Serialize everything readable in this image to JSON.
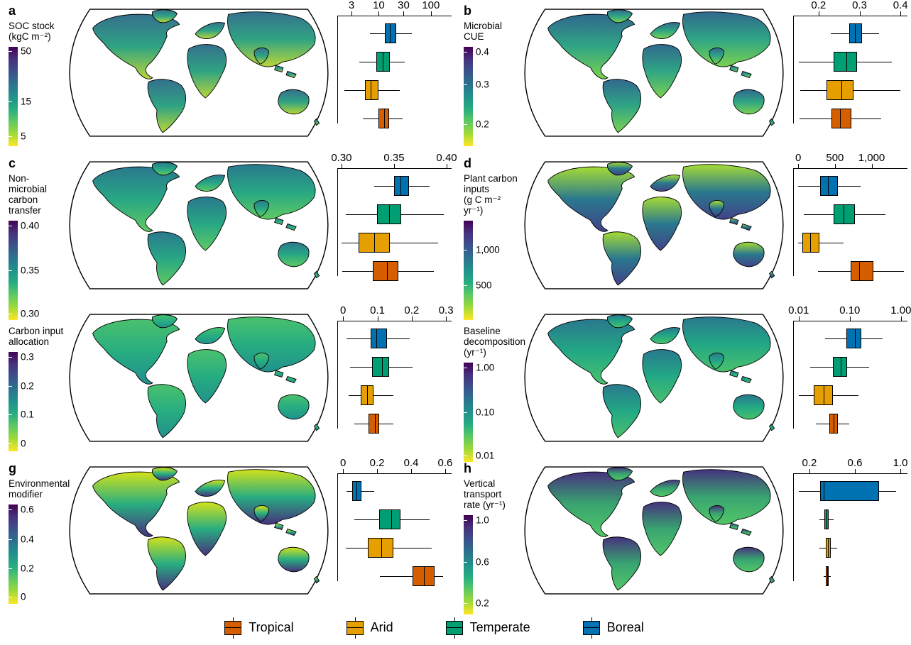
{
  "figure": {
    "description": "Global maps with biome boxplots, panels a-h"
  },
  "legend": {
    "items": [
      {
        "label": "Tropical",
        "color": "#D55E00"
      },
      {
        "label": "Arid",
        "color": "#E69F00"
      },
      {
        "label": "Temperate",
        "color": "#009E73"
      },
      {
        "label": "Boreal",
        "color": "#0072B2"
      }
    ]
  },
  "chart_data": [
    {
      "panel": "a",
      "type": "map+boxplot",
      "title": "SOC stock\n(kgC m⁻²)",
      "map_colors": [
        "#35708e",
        "#2fa383",
        "#b8d539"
      ],
      "colorbar": {
        "ticks": [
          {
            "label": "50",
            "pos": 0.04
          },
          {
            "label": "15",
            "pos": 0.55
          },
          {
            "label": "5",
            "pos": 0.9
          }
        ]
      },
      "box_axis": {
        "scale": "log",
        "min": 1.6,
        "max": 220,
        "ticks": [
          {
            "label": "3",
            "value": 3
          },
          {
            "label": "10",
            "value": 10
          },
          {
            "label": "30",
            "value": 30
          },
          {
            "label": "100",
            "value": 100
          }
        ]
      },
      "boxes": [
        {
          "biome": "Boreal",
          "whislo": 6.7,
          "q1": 13.0,
          "med": 16.4,
          "q3": 21.4,
          "whishi": 42.8
        },
        {
          "biome": "Temperate",
          "whislo": 4.2,
          "q1": 9.0,
          "med": 12.0,
          "q3": 16.5,
          "whishi": 31.0
        },
        {
          "biome": "Arid",
          "whislo": 2.2,
          "q1": 5.5,
          "med": 7.0,
          "q3": 10.0,
          "whishi": 25.0
        },
        {
          "biome": "Tropical",
          "whislo": 4.9,
          "q1": 10.0,
          "med": 12.5,
          "q3": 16.0,
          "whishi": 29.0
        }
      ]
    },
    {
      "panel": "b",
      "type": "map+boxplot",
      "title": "Microbial\nCUE",
      "map_colors": [
        "#31688e",
        "#2fa584",
        "#7ad151"
      ],
      "colorbar": {
        "ticks": [
          {
            "label": "0.4",
            "pos": 0.05
          },
          {
            "label": "0.3",
            "pos": 0.38
          },
          {
            "label": "0.2",
            "pos": 0.78
          }
        ]
      },
      "box_axis": {
        "scale": "linear",
        "min": 0.138,
        "max": 0.41,
        "ticks": [
          {
            "label": "0.2",
            "value": 0.2
          },
          {
            "label": "0.3",
            "value": 0.3
          },
          {
            "label": "0.4",
            "value": 0.4
          }
        ]
      },
      "boxes": [
        {
          "biome": "Boreal",
          "whislo": 0.23,
          "q1": 0.275,
          "med": 0.288,
          "q3": 0.306,
          "whishi": 0.347
        },
        {
          "biome": "Temperate",
          "whislo": 0.152,
          "q1": 0.236,
          "med": 0.268,
          "q3": 0.294,
          "whishi": 0.379
        },
        {
          "biome": "Arid",
          "whislo": 0.156,
          "q1": 0.219,
          "med": 0.255,
          "q3": 0.285,
          "whishi": 0.399
        },
        {
          "biome": "Tropical",
          "whislo": 0.153,
          "q1": 0.231,
          "med": 0.253,
          "q3": 0.28,
          "whishi": 0.352
        }
      ]
    },
    {
      "panel": "c",
      "type": "map+boxplot",
      "title": "Non-microbial\ncarbon\ntransfer",
      "map_colors": [
        "#2a788e",
        "#28a784",
        "#5ec962"
      ],
      "colorbar": {
        "ticks": [
          {
            "label": "0.40",
            "pos": 0.05
          },
          {
            "label": "0.35",
            "pos": 0.5
          },
          {
            "label": "0.30",
            "pos": 0.93
          }
        ]
      },
      "box_axis": {
        "scale": "linear",
        "min": 0.296,
        "max": 0.402,
        "ticks": [
          {
            "label": "0.30",
            "value": 0.3
          },
          {
            "label": "0.35",
            "value": 0.35
          },
          {
            "label": "0.40",
            "value": 0.4
          }
        ]
      },
      "boxes": [
        {
          "biome": "Boreal",
          "whislo": 0.331,
          "q1": 0.35,
          "med": 0.356,
          "q3": 0.364,
          "whishi": 0.384
        },
        {
          "biome": "Temperate",
          "whislo": 0.304,
          "q1": 0.334,
          "med": 0.345,
          "q3": 0.357,
          "whishi": 0.397
        },
        {
          "biome": "Arid",
          "whislo": 0.3,
          "q1": 0.316,
          "med": 0.331,
          "q3": 0.346,
          "whishi": 0.392
        },
        {
          "biome": "Tropical",
          "whislo": 0.301,
          "q1": 0.33,
          "med": 0.343,
          "q3": 0.354,
          "whishi": 0.388
        }
      ]
    },
    {
      "panel": "d",
      "type": "map+boxplot",
      "title": "Plant carbon\ninputs\n(g C m⁻²\nyr⁻¹)",
      "map_colors": [
        "#a5db36",
        "#2a788e",
        "#414487"
      ],
      "colorbar": {
        "ticks": [
          {
            "label": "1,000",
            "pos": 0.29
          },
          {
            "label": "500",
            "pos": 0.65
          }
        ]
      },
      "box_axis": {
        "scale": "linear",
        "min": -70,
        "max": 1450,
        "ticks": [
          {
            "label": "0",
            "value": 0
          },
          {
            "label": "500",
            "value": 500
          },
          {
            "label": "1,000",
            "value": 1000
          }
        ]
      },
      "boxes": [
        {
          "biome": "Boreal",
          "whislo": 0,
          "q1": 296,
          "med": 405,
          "q3": 536,
          "whishi": 849
        },
        {
          "biome": "Temperate",
          "whislo": 76,
          "q1": 480,
          "med": 618,
          "q3": 776,
          "whishi": 1186
        },
        {
          "biome": "Arid",
          "whislo": 0,
          "q1": 59,
          "med": 158,
          "q3": 290,
          "whishi": 618
        },
        {
          "biome": "Tropical",
          "whislo": 273,
          "q1": 710,
          "med": 832,
          "q3": 1020,
          "whishi": 1440
        }
      ]
    },
    {
      "panel": "e",
      "type": "map+boxplot",
      "title": "Carbon input\nallocation",
      "map_colors": [
        "#4ac16d",
        "#27ad81",
        "#21918c"
      ],
      "colorbar": {
        "ticks": [
          {
            "label": "0.3",
            "pos": 0.05
          },
          {
            "label": "0.2",
            "pos": 0.34
          },
          {
            "label": "0.1",
            "pos": 0.63
          },
          {
            "label": "0",
            "pos": 0.92
          }
        ]
      },
      "box_axis": {
        "scale": "linear",
        "min": -0.017,
        "max": 0.308,
        "ticks": [
          {
            "label": "0",
            "value": 0
          },
          {
            "label": "0.1",
            "value": 0.1
          },
          {
            "label": "0.2",
            "value": 0.2
          },
          {
            "label": "0.3",
            "value": 0.3
          }
        ]
      },
      "boxes": [
        {
          "biome": "Boreal",
          "whislo": 0.01,
          "q1": 0.081,
          "med": 0.096,
          "q3": 0.127,
          "whishi": 0.194
        },
        {
          "biome": "Temperate",
          "whislo": 0.021,
          "q1": 0.085,
          "med": 0.113,
          "q3": 0.134,
          "whishi": 0.203
        },
        {
          "biome": "Arid",
          "whislo": 0.016,
          "q1": 0.051,
          "med": 0.069,
          "q3": 0.089,
          "whishi": 0.146
        },
        {
          "biome": "Tropical",
          "whislo": 0.033,
          "q1": 0.075,
          "med": 0.092,
          "q3": 0.106,
          "whishi": 0.147
        }
      ]
    },
    {
      "panel": "f",
      "type": "map+boxplot",
      "title": "Baseline\ndecomposition\n(yr⁻¹)",
      "map_colors": [
        "#2a788e",
        "#22a884",
        "#4ac16d"
      ],
      "colorbar": {
        "ticks": [
          {
            "label": "1.00",
            "pos": 0.05
          },
          {
            "label": "0.10",
            "pos": 0.5
          },
          {
            "label": "0.01",
            "pos": 0.93
          }
        ]
      },
      "box_axis": {
        "scale": "log",
        "min": 0.0078,
        "max": 1.18,
        "ticks": [
          {
            "label": "0.01",
            "value": 0.01
          },
          {
            "label": "0.10",
            "value": 0.1
          },
          {
            "label": "1.00",
            "value": 1.0
          }
        ]
      },
      "boxes": [
        {
          "biome": "Boreal",
          "whislo": 0.033,
          "q1": 0.085,
          "med": 0.124,
          "q3": 0.17,
          "whishi": 0.44
        },
        {
          "biome": "Temperate",
          "whislo": 0.017,
          "q1": 0.047,
          "med": 0.066,
          "q3": 0.088,
          "whishi": 0.24
        },
        {
          "biome": "Arid",
          "whislo": 0.01,
          "q1": 0.02,
          "med": 0.031,
          "q3": 0.047,
          "whishi": 0.149
        },
        {
          "biome": "Tropical",
          "whislo": 0.022,
          "q1": 0.04,
          "med": 0.048,
          "q3": 0.059,
          "whishi": 0.099
        }
      ]
    },
    {
      "panel": "g",
      "type": "map+boxplot",
      "title": "Environmental\nmodifier",
      "map_colors": [
        "#d2e21b",
        "#28ae80",
        "#46327e"
      ],
      "colorbar": {
        "ticks": [
          {
            "label": "0.6",
            "pos": 0.05
          },
          {
            "label": "0.4",
            "pos": 0.35
          },
          {
            "label": "0.2",
            "pos": 0.64
          },
          {
            "label": "0",
            "pos": 0.93
          }
        ]
      },
      "box_axis": {
        "scale": "linear",
        "min": -0.034,
        "max": 0.621,
        "ticks": [
          {
            "label": "0",
            "value": 0
          },
          {
            "label": "0.2",
            "value": 0.2
          },
          {
            "label": "0.4",
            "value": 0.4
          },
          {
            "label": "0.6",
            "value": 0.6
          }
        ]
      },
      "boxes": [
        {
          "biome": "Boreal",
          "whislo": 0.021,
          "q1": 0.053,
          "med": 0.077,
          "q3": 0.108,
          "whishi": 0.182
        },
        {
          "biome": "Temperate",
          "whislo": 0.067,
          "q1": 0.214,
          "med": 0.284,
          "q3": 0.336,
          "whishi": 0.508
        },
        {
          "biome": "Arid",
          "whislo": 0.018,
          "q1": 0.147,
          "med": 0.224,
          "q3": 0.294,
          "whishi": 0.522
        },
        {
          "biome": "Tropical",
          "whislo": 0.217,
          "q1": 0.41,
          "med": 0.476,
          "q3": 0.536,
          "whishi": 0.587
        }
      ]
    },
    {
      "panel": "h",
      "type": "map+boxplot",
      "title": "Vertical\ntransport\nrate (yr⁻¹)",
      "map_colors": [
        "#46327e",
        "#38a570",
        "#53c568"
      ],
      "colorbar": {
        "ticks": [
          {
            "label": "1.0",
            "pos": 0.05
          },
          {
            "label": "0.6",
            "pos": 0.47
          },
          {
            "label": "0.2",
            "pos": 0.88
          }
        ]
      },
      "box_axis": {
        "scale": "linear",
        "min": 0.057,
        "max": 1.037,
        "ticks": [
          {
            "label": "0.2",
            "value": 0.2
          },
          {
            "label": "0.6",
            "value": 0.6
          },
          {
            "label": "1.0",
            "value": 1.0
          }
        ]
      },
      "boxes": [
        {
          "biome": "Boreal",
          "whislo": 0.105,
          "q1": 0.297,
          "med": 0.324,
          "q3": 0.812,
          "whishi": 0.963
        },
        {
          "biome": "Temperate",
          "whislo": 0.291,
          "q1": 0.332,
          "med": 0.348,
          "q3": 0.369,
          "whishi": 0.414
        },
        {
          "biome": "Arid",
          "whislo": 0.291,
          "q1": 0.344,
          "med": 0.363,
          "q3": 0.386,
          "whishi": 0.441
        },
        {
          "biome": "Tropical",
          "whislo": 0.324,
          "q1": 0.344,
          "med": 0.356,
          "q3": 0.369,
          "whishi": 0.39
        }
      ]
    }
  ]
}
